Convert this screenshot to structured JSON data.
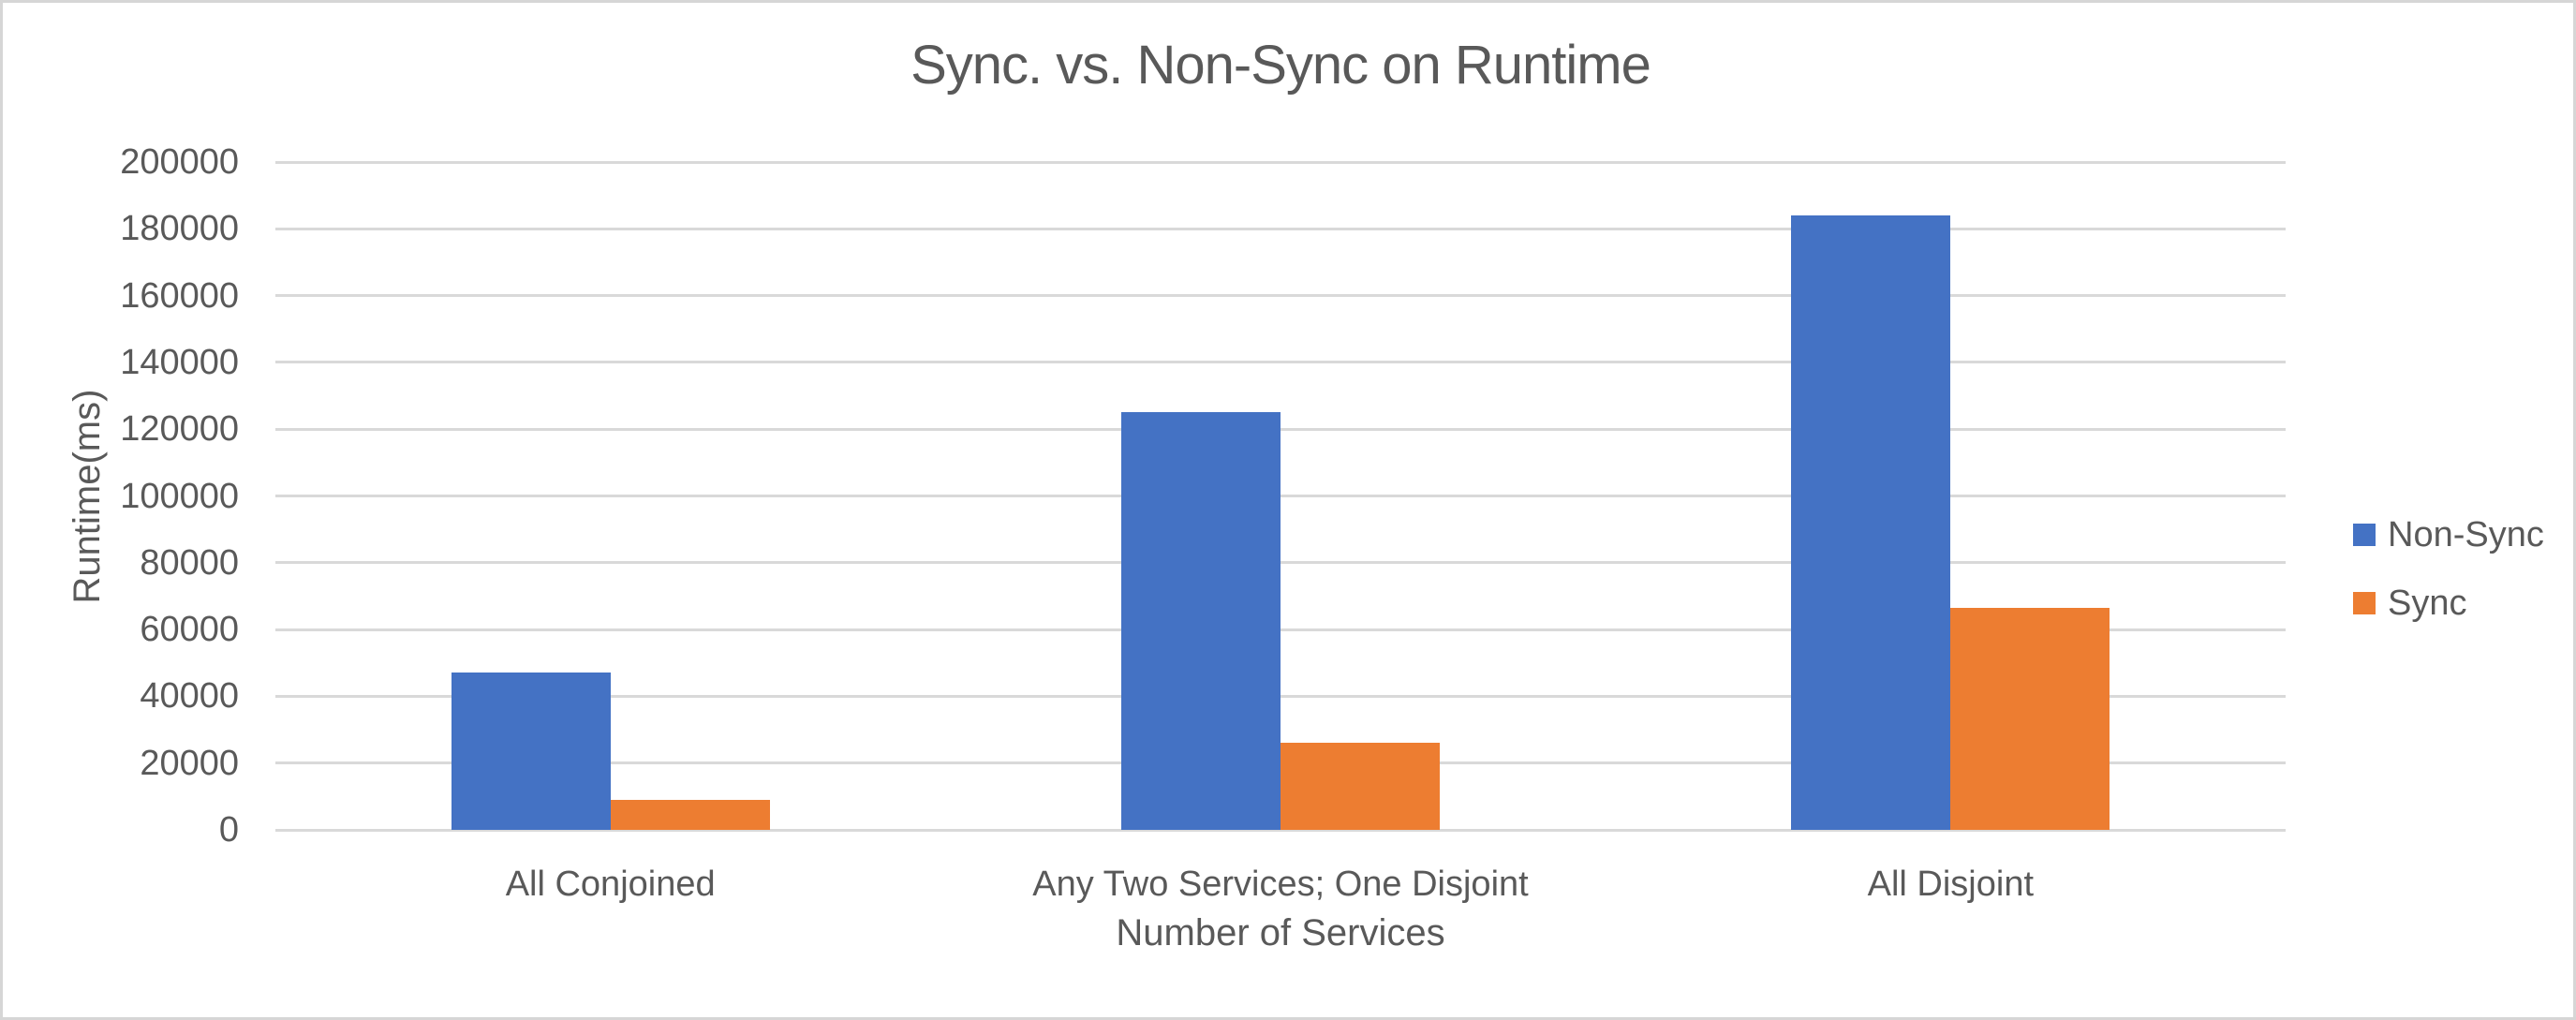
{
  "chart_data": {
    "type": "bar",
    "title": "Sync. vs. Non-Sync on Runtime",
    "xlabel": "Number of Services",
    "ylabel": "Runtime(ms)",
    "categories": [
      "All Conjoined",
      "Any Two Services; One Disjoint",
      "All Disjoint"
    ],
    "series": [
      {
        "name": "Non-Sync",
        "color": "#4472C4",
        "values": [
          47000,
          125000,
          184000
        ]
      },
      {
        "name": "Sync",
        "color": "#ED7D31",
        "values": [
          9000,
          26000,
          66500
        ]
      }
    ],
    "ylim": [
      0,
      200000
    ],
    "yticks": [
      0,
      20000,
      40000,
      60000,
      80000,
      100000,
      120000,
      140000,
      160000,
      180000,
      200000
    ],
    "grid": true,
    "legend_position": "right",
    "legend_entries": [
      "Non-Sync",
      "Sync"
    ]
  },
  "colors": {
    "text": "#595959",
    "gridline": "#D9D9D9",
    "border": "#D6D6D6",
    "background": "#FFFFFF",
    "non_sync": "#4472C4",
    "sync": "#ED7D31"
  }
}
